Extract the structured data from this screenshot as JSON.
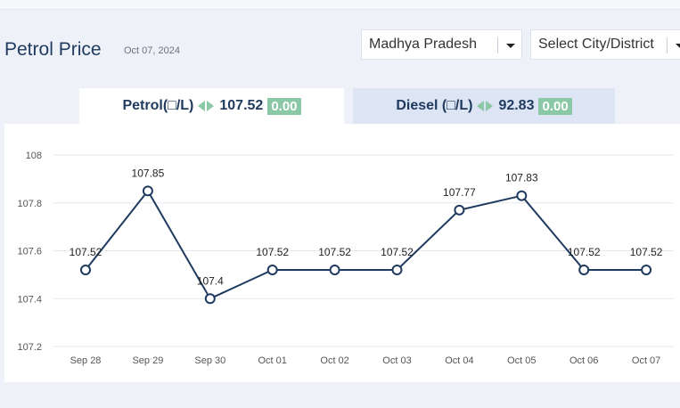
{
  "header": {
    "title": "Petrol Price",
    "date": "Oct 07, 2024",
    "state_select": "Madhya Pradesh",
    "city_select": "Select City/District"
  },
  "tabs": [
    {
      "label": "Petrol(□/L)",
      "price": "107.52",
      "change": "0.00",
      "active": true
    },
    {
      "label": "Diesel (□/L)",
      "price": "92.83",
      "change": "0.00",
      "active": false
    }
  ],
  "colors": {
    "line": "#1f3a5f",
    "badge": "#8bc8a5",
    "active_tab": "#ffffff",
    "inactive_tab": "#dde4f4"
  },
  "chart_data": {
    "type": "line",
    "categories": [
      "Sep 28",
      "Sep 29",
      "Sep 30",
      "Oct 01",
      "Oct 02",
      "Oct 03",
      "Oct 04",
      "Oct 05",
      "Oct 06",
      "Oct 07"
    ],
    "values": [
      107.52,
      107.85,
      107.4,
      107.52,
      107.52,
      107.52,
      107.77,
      107.83,
      107.52,
      107.52
    ],
    "data_labels": [
      "107.52",
      "107.85",
      "107.4",
      "107.52",
      "107.52",
      "107.52",
      "107.77",
      "107.83",
      "107.52",
      "107.52"
    ],
    "yticks": [
      "107.2",
      "107.4",
      "107.6",
      "107.8",
      "108"
    ],
    "ylim": [
      107.2,
      108
    ],
    "grid": true,
    "legend": "none"
  }
}
